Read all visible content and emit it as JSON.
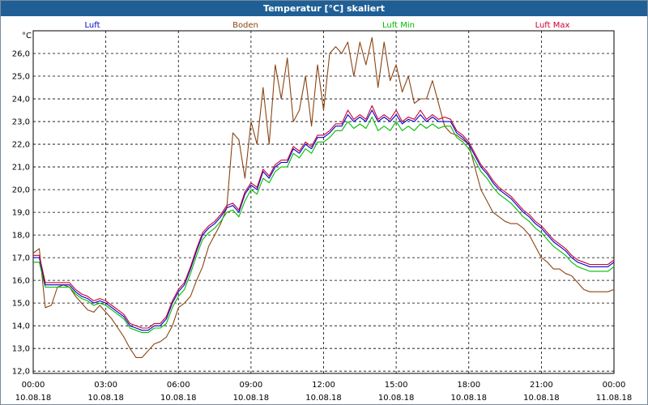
{
  "window": {
    "title": "Temperatur [°C] skaliert"
  },
  "chart_data": {
    "type": "line",
    "title": "Temperatur [°C] skaliert",
    "ylabel": "°C",
    "ylim": [
      11.9,
      27.0
    ],
    "y_ticks": [
      "12,0",
      "13,0",
      "14,0",
      "15,0",
      "16,0",
      "17,0",
      "18,0",
      "19,0",
      "20,0",
      "21,0",
      "22,0",
      "23,0",
      "24,0",
      "25,0",
      "26,0"
    ],
    "x_ticks": [
      {
        "time": "00:00",
        "date": "10.08.18"
      },
      {
        "time": "03:00",
        "date": "10.08.18"
      },
      {
        "time": "06:00",
        "date": "10.08.18"
      },
      {
        "time": "09:00",
        "date": "10.08.18"
      },
      {
        "time": "12:00",
        "date": "10.08.18"
      },
      {
        "time": "15:00",
        "date": "10.08.18"
      },
      {
        "time": "18:00",
        "date": "10.08.18"
      },
      {
        "time": "21:00",
        "date": "10.08.18"
      },
      {
        "time": "00:00",
        "date": "11.08.18"
      }
    ],
    "grid": true,
    "legend_position": "top",
    "series": [
      {
        "name": "Luft",
        "color": "#0000cc",
        "x": [
          0,
          0.25,
          0.5,
          0.75,
          1,
          1.25,
          1.5,
          1.75,
          2,
          2.25,
          2.5,
          2.75,
          3,
          3.25,
          3.5,
          3.75,
          4,
          4.25,
          4.5,
          4.75,
          5,
          5.25,
          5.5,
          5.75,
          6,
          6.25,
          6.5,
          6.75,
          7,
          7.25,
          7.5,
          7.75,
          8,
          8.25,
          8.5,
          8.75,
          9,
          9.25,
          9.5,
          9.75,
          10,
          10.25,
          10.5,
          10.75,
          11,
          11.25,
          11.5,
          11.75,
          12,
          12.25,
          12.5,
          12.75,
          13,
          13.25,
          13.5,
          13.75,
          14,
          14.25,
          14.5,
          14.75,
          15,
          15.25,
          15.5,
          15.75,
          16,
          16.25,
          16.5,
          16.75,
          17,
          17.25,
          17.5,
          17.75,
          18,
          18.25,
          18.5,
          18.75,
          19,
          19.25,
          19.5,
          19.75,
          20,
          20.25,
          20.5,
          20.75,
          21,
          21.25,
          21.5,
          21.75,
          22,
          22.25,
          22.5,
          22.75,
          23,
          23.25,
          23.5,
          23.75,
          24
        ],
        "y": [
          17.0,
          17.0,
          15.8,
          15.8,
          15.8,
          15.8,
          15.8,
          15.5,
          15.3,
          15.2,
          15.0,
          15.1,
          15.0,
          14.8,
          14.6,
          14.4,
          14.0,
          13.9,
          13.8,
          13.8,
          14.0,
          14.0,
          14.3,
          15.0,
          15.5,
          15.8,
          16.5,
          17.3,
          18.0,
          18.3,
          18.5,
          18.8,
          19.2,
          19.3,
          19.0,
          19.8,
          20.2,
          20.0,
          20.8,
          20.5,
          21.0,
          21.2,
          21.2,
          21.8,
          21.6,
          22.0,
          21.8,
          22.3,
          22.3,
          22.5,
          22.8,
          22.8,
          23.3,
          23.0,
          23.2,
          23.0,
          23.5,
          23.0,
          23.2,
          23.0,
          23.3,
          22.9,
          23.1,
          23.0,
          23.3,
          23.0,
          23.2,
          23.0,
          23.0,
          23.0,
          22.5,
          22.3,
          22.0,
          21.5,
          21.0,
          20.7,
          20.3,
          20.0,
          19.8,
          19.6,
          19.3,
          19.0,
          18.8,
          18.5,
          18.3,
          18.0,
          17.7,
          17.5,
          17.3,
          17.0,
          16.8,
          16.7,
          16.6,
          16.6,
          16.6,
          16.6,
          16.8
        ]
      },
      {
        "name": "Boden",
        "color": "#8b4513",
        "x": [
          0,
          0.25,
          0.5,
          0.75,
          1,
          1.25,
          1.5,
          1.75,
          2,
          2.25,
          2.5,
          2.75,
          3,
          3.25,
          3.5,
          3.75,
          4,
          4.25,
          4.5,
          4.75,
          5,
          5.25,
          5.5,
          5.75,
          6,
          6.25,
          6.5,
          6.75,
          7,
          7.25,
          7.5,
          7.75,
          8,
          8.25,
          8.5,
          8.75,
          9,
          9.25,
          9.5,
          9.75,
          10,
          10.25,
          10.5,
          10.75,
          11,
          11.25,
          11.5,
          11.75,
          12,
          12.25,
          12.5,
          12.75,
          13,
          13.25,
          13.5,
          13.75,
          14,
          14.25,
          14.5,
          14.75,
          15,
          15.25,
          15.5,
          15.75,
          16,
          16.25,
          16.5,
          16.75,
          17,
          17.25,
          17.5,
          17.75,
          18,
          18.25,
          18.5,
          18.75,
          19,
          19.25,
          19.5,
          19.75,
          20,
          20.25,
          20.5,
          20.75,
          21,
          21.25,
          21.5,
          21.75,
          22,
          22.25,
          22.5,
          22.75,
          23,
          23.25,
          23.5,
          23.75,
          24
        ],
        "y": [
          17.2,
          17.4,
          14.8,
          14.9,
          15.7,
          15.8,
          15.7,
          15.3,
          15.0,
          14.7,
          14.6,
          14.9,
          14.6,
          14.3,
          13.9,
          13.5,
          13.0,
          12.6,
          12.6,
          12.9,
          13.2,
          13.3,
          13.5,
          14.0,
          14.8,
          15.0,
          15.3,
          16.0,
          16.6,
          17.5,
          18.0,
          18.5,
          19.2,
          22.5,
          22.2,
          20.5,
          23.0,
          22.0,
          24.5,
          22.0,
          25.5,
          24.0,
          25.8,
          23.0,
          23.5,
          25.0,
          22.8,
          25.5,
          23.5,
          26.0,
          26.3,
          26.0,
          26.5,
          25.0,
          26.5,
          25.5,
          26.7,
          24.5,
          26.5,
          24.8,
          25.5,
          24.3,
          25.0,
          23.8,
          24.0,
          24.0,
          24.8,
          23.8,
          22.8,
          22.5,
          22.4,
          22.2,
          22.0,
          21.0,
          20.0,
          19.5,
          19.0,
          18.8,
          18.6,
          18.5,
          18.5,
          18.3,
          18.0,
          17.5,
          17.0,
          16.8,
          16.5,
          16.5,
          16.3,
          16.2,
          15.9,
          15.6,
          15.5,
          15.5,
          15.5,
          15.5,
          15.6
        ]
      },
      {
        "name": "Luft Min",
        "color": "#00bb00",
        "x": [
          0,
          0.25,
          0.5,
          0.75,
          1,
          1.25,
          1.5,
          1.75,
          2,
          2.25,
          2.5,
          2.75,
          3,
          3.25,
          3.5,
          3.75,
          4,
          4.25,
          4.5,
          4.75,
          5,
          5.25,
          5.5,
          5.75,
          6,
          6.25,
          6.5,
          6.75,
          7,
          7.25,
          7.5,
          7.75,
          8,
          8.25,
          8.5,
          8.75,
          9,
          9.25,
          9.5,
          9.75,
          10,
          10.25,
          10.5,
          10.75,
          11,
          11.25,
          11.5,
          11.75,
          12,
          12.25,
          12.5,
          12.75,
          13,
          13.25,
          13.5,
          13.75,
          14,
          14.25,
          14.5,
          14.75,
          15,
          15.25,
          15.5,
          15.75,
          16,
          16.25,
          16.5,
          16.75,
          17,
          17.25,
          17.5,
          17.75,
          18,
          18.25,
          18.5,
          18.75,
          19,
          19.25,
          19.5,
          19.75,
          20,
          20.25,
          20.5,
          20.75,
          21,
          21.25,
          21.5,
          21.75,
          22,
          22.25,
          22.5,
          22.75,
          23,
          23.25,
          23.5,
          23.75,
          24
        ],
        "y": [
          16.8,
          16.8,
          15.7,
          15.7,
          15.7,
          15.7,
          15.7,
          15.4,
          15.2,
          15.1,
          14.9,
          15.0,
          14.9,
          14.7,
          14.5,
          14.3,
          13.9,
          13.8,
          13.7,
          13.7,
          13.9,
          13.9,
          14.1,
          14.8,
          15.3,
          15.6,
          16.3,
          17.1,
          17.8,
          18.1,
          18.3,
          18.6,
          19.0,
          19.1,
          18.8,
          19.5,
          20.0,
          19.8,
          20.5,
          20.3,
          20.8,
          21.0,
          21.0,
          21.6,
          21.4,
          21.8,
          21.6,
          22.1,
          22.1,
          22.3,
          22.6,
          22.6,
          23.0,
          22.7,
          22.9,
          22.7,
          23.2,
          22.6,
          22.8,
          22.6,
          23.0,
          22.6,
          22.8,
          22.6,
          22.9,
          22.7,
          22.9,
          22.7,
          22.8,
          22.8,
          22.3,
          22.1,
          21.8,
          21.3,
          20.8,
          20.5,
          20.1,
          19.8,
          19.6,
          19.4,
          19.1,
          18.8,
          18.6,
          18.3,
          18.1,
          17.8,
          17.5,
          17.3,
          17.1,
          16.8,
          16.6,
          16.5,
          16.4,
          16.4,
          16.4,
          16.4,
          16.6
        ]
      },
      {
        "name": "Luft Max",
        "color": "#cc0033",
        "x": [
          0,
          0.25,
          0.5,
          0.75,
          1,
          1.25,
          1.5,
          1.75,
          2,
          2.25,
          2.5,
          2.75,
          3,
          3.25,
          3.5,
          3.75,
          4,
          4.25,
          4.5,
          4.75,
          5,
          5.25,
          5.5,
          5.75,
          6,
          6.25,
          6.5,
          6.75,
          7,
          7.25,
          7.5,
          7.75,
          8,
          8.25,
          8.5,
          8.75,
          9,
          9.25,
          9.5,
          9.75,
          10,
          10.25,
          10.5,
          10.75,
          11,
          11.25,
          11.5,
          11.75,
          12,
          12.25,
          12.5,
          12.75,
          13,
          13.25,
          13.5,
          13.75,
          14,
          14.25,
          14.5,
          14.75,
          15,
          15.25,
          15.5,
          15.75,
          16,
          16.25,
          16.5,
          16.75,
          17,
          17.25,
          17.5,
          17.75,
          18,
          18.25,
          18.5,
          18.75,
          19,
          19.25,
          19.5,
          19.75,
          20,
          20.25,
          20.5,
          20.75,
          21,
          21.25,
          21.5,
          21.75,
          22,
          22.25,
          22.5,
          22.75,
          23,
          23.25,
          23.5,
          23.75,
          24
        ],
        "y": [
          17.1,
          17.1,
          15.9,
          15.9,
          15.9,
          15.9,
          15.9,
          15.6,
          15.4,
          15.3,
          15.1,
          15.2,
          15.1,
          14.9,
          14.7,
          14.5,
          14.1,
          14.0,
          13.9,
          13.9,
          14.1,
          14.1,
          14.4,
          15.1,
          15.6,
          15.9,
          16.6,
          17.4,
          18.1,
          18.4,
          18.6,
          18.9,
          19.3,
          19.4,
          19.1,
          19.9,
          20.3,
          20.1,
          20.9,
          20.6,
          21.1,
          21.3,
          21.3,
          21.9,
          21.7,
          22.1,
          21.9,
          22.4,
          22.4,
          22.6,
          22.9,
          22.9,
          23.5,
          23.1,
          23.3,
          23.1,
          23.7,
          23.1,
          23.3,
          23.1,
          23.5,
          23.0,
          23.2,
          23.1,
          23.5,
          23.1,
          23.3,
          23.1,
          23.2,
          23.1,
          22.6,
          22.4,
          22.1,
          21.6,
          21.1,
          20.8,
          20.4,
          20.1,
          19.9,
          19.7,
          19.4,
          19.1,
          18.9,
          18.6,
          18.4,
          18.1,
          17.8,
          17.6,
          17.4,
          17.1,
          16.9,
          16.8,
          16.7,
          16.7,
          16.7,
          16.7,
          16.9
        ]
      }
    ]
  }
}
